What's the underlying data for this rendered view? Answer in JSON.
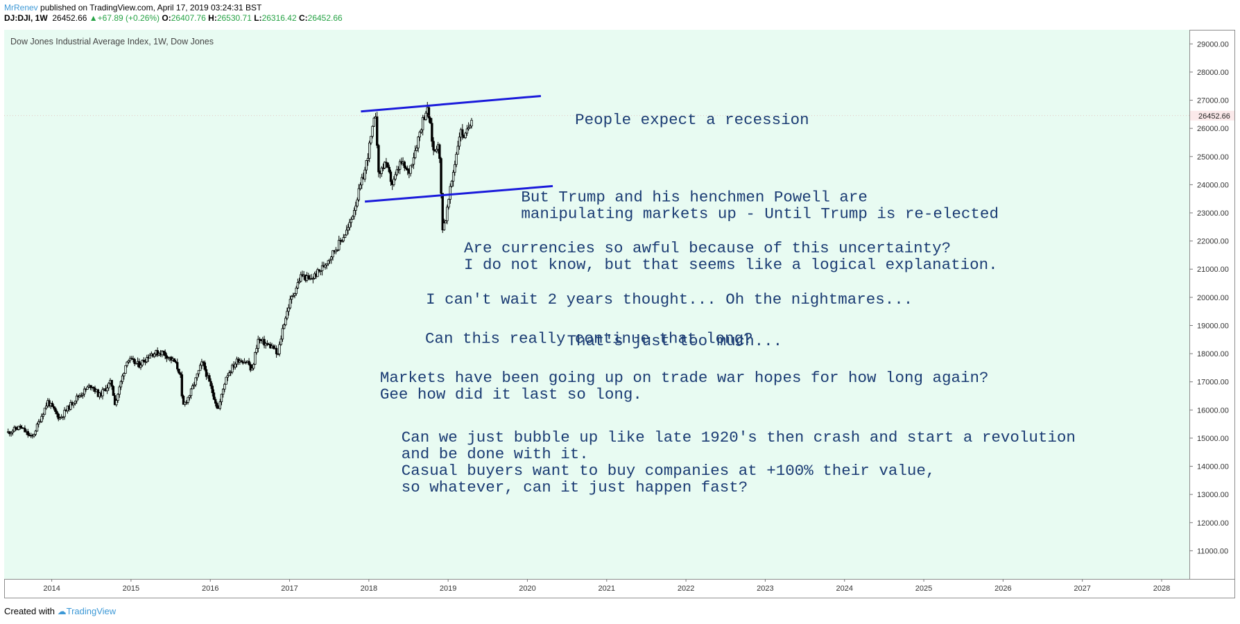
{
  "header": {
    "author": "MrRenev",
    "published": " published on TradingView.com, April 17, 2019 03:24:31 BST",
    "symbol_line": "DJ:DJI, 1W",
    "last": "26452.66",
    "change": "+67.89 (+0.26%)",
    "o_label": "O:",
    "o": "26407.76",
    "h_label": "H:",
    "h": "26530.71",
    "l_label": "L:",
    "l": "26316.42",
    "c_label": "C:",
    "c": "26452.66"
  },
  "footer": {
    "created_with": "Created with",
    "brand": "TradingView"
  },
  "colors": {
    "background": "#e8fbf2",
    "candles": "#000000",
    "trendlines": "#1a1adb",
    "annotation": "#1a3b73",
    "up": "#25a244",
    "author": "#3c98d6"
  },
  "chart_data": {
    "type": "candlestick",
    "title": "Dow Jones Industrial Average Index, 1W, Dow Jones",
    "last_price_label": "26452.66",
    "y_axis": {
      "position": "right",
      "range": [
        10000,
        29500
      ],
      "ticks": [
        "29000.00",
        "28000.00",
        "27000.00",
        "26000.00",
        "25000.00",
        "24000.00",
        "23000.00",
        "22000.00",
        "21000.00",
        "20000.00",
        "19000.00",
        "18000.00",
        "17000.00",
        "16000.00",
        "15000.00",
        "14000.00",
        "13000.00",
        "12000.00",
        "11000.00"
      ]
    },
    "x_axis": {
      "range": [
        2013.4,
        2028.35
      ],
      "ticks": [
        "2014",
        "2015",
        "2016",
        "2017",
        "2018",
        "2019",
        "2020",
        "2021",
        "2022",
        "2023",
        "2024",
        "2025",
        "2026",
        "2027",
        "2028"
      ]
    },
    "series": [
      {
        "values": [
          [
            2013.45,
            15200
          ],
          [
            2013.6,
            15400
          ],
          [
            2013.75,
            15000
          ],
          [
            2013.95,
            16300
          ],
          [
            2014.1,
            15700
          ],
          [
            2014.3,
            16400
          ],
          [
            2014.5,
            16900
          ],
          [
            2014.6,
            16500
          ],
          [
            2014.75,
            17000
          ],
          [
            2014.8,
            16200
          ],
          [
            2014.95,
            17800
          ],
          [
            2015.1,
            17600
          ],
          [
            2015.25,
            18000
          ],
          [
            2015.4,
            18050
          ],
          [
            2015.55,
            17700
          ],
          [
            2015.62,
            17300
          ],
          [
            2015.65,
            16100
          ],
          [
            2015.75,
            16600
          ],
          [
            2015.9,
            17700
          ],
          [
            2016.02,
            16700
          ],
          [
            2016.1,
            16000
          ],
          [
            2016.2,
            17200
          ],
          [
            2016.35,
            17800
          ],
          [
            2016.48,
            17700
          ],
          [
            2016.52,
            17300
          ],
          [
            2016.6,
            18500
          ],
          [
            2016.8,
            18200
          ],
          [
            2016.85,
            17900
          ],
          [
            2016.92,
            19000
          ],
          [
            2017.0,
            19800
          ],
          [
            2017.15,
            20800
          ],
          [
            2017.25,
            20600
          ],
          [
            2017.4,
            21000
          ],
          [
            2017.6,
            21800
          ],
          [
            2017.75,
            22500
          ],
          [
            2017.85,
            23500
          ],
          [
            2017.95,
            24500
          ],
          [
            2018.05,
            26000
          ],
          [
            2018.09,
            26600
          ],
          [
            2018.12,
            24300
          ],
          [
            2018.2,
            24800
          ],
          [
            2018.3,
            24000
          ],
          [
            2018.4,
            24800
          ],
          [
            2018.5,
            24400
          ],
          [
            2018.6,
            25400
          ],
          [
            2018.68,
            26300
          ],
          [
            2018.73,
            26700
          ],
          [
            2018.76,
            26400
          ],
          [
            2018.82,
            25100
          ],
          [
            2018.88,
            25600
          ],
          [
            2018.93,
            22500
          ],
          [
            2018.97,
            22800
          ],
          [
            2019.05,
            24200
          ],
          [
            2019.15,
            25900
          ],
          [
            2019.22,
            25700
          ],
          [
            2019.3,
            26450
          ]
        ]
      }
    ],
    "trendlines": [
      {
        "from": [
          2017.9,
          26600
        ],
        "to": [
          2020.17,
          27150
        ]
      },
      {
        "from": [
          2017.95,
          23400
        ],
        "to": [
          2020.32,
          23950
        ]
      }
    ],
    "annotations": [
      {
        "lines": [
          "People expect a recession"
        ],
        "at": [
          2020.6,
          26150
        ]
      },
      {
        "lines": [
          "But Trump and his henchmen Powell are",
          "manipulating markets up - Until Trump is re-elected"
        ],
        "at": [
          2019.92,
          23410
        ]
      },
      {
        "lines": [
          "Are currencies so awful because of this uncertainty?",
          "I do not know, but that seems like a logical explanation."
        ],
        "at": [
          2019.2,
          21600
        ]
      },
      {
        "lines": [
          "I can't wait 2 years thought... Oh the nightmares..."
        ],
        "at": [
          2018.72,
          19780
        ]
      },
      {
        "lines": [
          "Can this really continue that long?"
        ],
        "at": [
          2018.71,
          18380
        ]
      },
      {
        "lines": [
          "That's just too much..."
        ],
        "at": [
          2020.5,
          18300
        ]
      },
      {
        "lines": [
          "Markets have been going up on trade war hopes for how long again?",
          "Gee how did it last so long."
        ],
        "at": [
          2018.14,
          16990
        ]
      },
      {
        "lines": [
          "Can we just bubble up like late 1920's then crash and start a revolution",
          "and be done with it.",
          "Casual buyers want to buy companies at +100% their value,",
          "so whatever, can it just happen fast?"
        ],
        "at": [
          2018.41,
          14870
        ]
      }
    ]
  }
}
